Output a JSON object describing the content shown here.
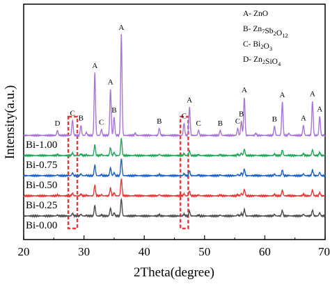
{
  "chart_data": {
    "type": "line",
    "xlabel": "2Theta(degree)",
    "ylabel": "Intensity(a.u.)",
    "xlim": [
      20,
      70
    ],
    "x_ticks": [
      "20",
      "30",
      "40",
      "50",
      "60",
      "70"
    ],
    "legend": [
      {
        "key": "A",
        "sep": "- ",
        "main": "ZnO",
        "parts": [
          [
            "ZnO",
            ""
          ]
        ]
      },
      {
        "key": "B",
        "sep": "- ",
        "main": "Zn7Sb2O12",
        "parts": [
          [
            "Zn",
            ""
          ],
          [
            "7",
            "sub"
          ],
          [
            "Sb",
            ""
          ],
          [
            "2",
            "sub"
          ],
          [
            "O",
            ""
          ],
          [
            "12",
            "sub"
          ]
        ]
      },
      {
        "key": "C",
        "sep": "- ",
        "main": "Bi2O3",
        "parts": [
          [
            "Bi",
            ""
          ],
          [
            "2",
            "sub"
          ],
          [
            "O",
            ""
          ],
          [
            "3",
            "sub"
          ]
        ]
      },
      {
        "key": "D",
        "sep": "- ",
        "main": "Zn2SiO4",
        "parts": [
          [
            "Zn",
            ""
          ],
          [
            "2",
            "sub"
          ],
          [
            "SiO",
            ""
          ],
          [
            "4",
            "sub"
          ]
        ]
      }
    ],
    "series": [
      {
        "name": "Bi-0.00",
        "color": "#4d4d4d",
        "offset": 0
      },
      {
        "name": "Bi-0.25",
        "color": "#e8393a",
        "offset": 1
      },
      {
        "name": "Bi-0.50",
        "color": "#1f63c8",
        "offset": 2
      },
      {
        "name": "Bi-0.75",
        "color": "#22a85a",
        "offset": 3
      },
      {
        "name": "Bi-1.00",
        "color": "#a875d8",
        "offset": 4
      }
    ],
    "peaks": [
      {
        "x": 25.6,
        "h": 0.05,
        "label": "D"
      },
      {
        "x": 28.1,
        "h": 0.15,
        "label": "C"
      },
      {
        "x": 29.5,
        "h": 0.1,
        "label": "B"
      },
      {
        "x": 32.9,
        "h": 0.06,
        "label": "C"
      },
      {
        "x": 31.8,
        "h": 0.62,
        "label": "A"
      },
      {
        "x": 34.4,
        "h": 0.46,
        "label": "A"
      },
      {
        "x": 35.0,
        "h": 0.18,
        "label": "B"
      },
      {
        "x": 36.2,
        "h": 1.0,
        "label": "A"
      },
      {
        "x": 42.5,
        "h": 0.07,
        "label": "B"
      },
      {
        "x": 46.6,
        "h": 0.12,
        "label": "C"
      },
      {
        "x": 47.5,
        "h": 0.28,
        "label": "A"
      },
      {
        "x": 49.0,
        "h": 0.05,
        "label": "C"
      },
      {
        "x": 52.6,
        "h": 0.05,
        "label": "B"
      },
      {
        "x": 55.5,
        "h": 0.07,
        "label": "C"
      },
      {
        "x": 56.1,
        "h": 0.14,
        "label": "B"
      },
      {
        "x": 56.6,
        "h": 0.38,
        "label": "A"
      },
      {
        "x": 61.6,
        "h": 0.09,
        "label": "B"
      },
      {
        "x": 62.9,
        "h": 0.33,
        "label": "A"
      },
      {
        "x": 66.4,
        "h": 0.1,
        "label": "A"
      },
      {
        "x": 67.9,
        "h": 0.34,
        "label": "A"
      },
      {
        "x": 69.1,
        "h": 0.19,
        "label": "A"
      }
    ],
    "extra_peaks": [
      {
        "x": 30.4,
        "h": 0.03
      },
      {
        "x": 38.5,
        "h": 0.02
      },
      {
        "x": 58.5,
        "h": 0.02
      },
      {
        "x": 64.0,
        "h": 0.02
      }
    ],
    "highlight_ranges": [
      [
        27.4,
        28.9
      ],
      [
        46.0,
        47.3
      ]
    ],
    "highlight_color": "#e8393a",
    "grid": false
  }
}
